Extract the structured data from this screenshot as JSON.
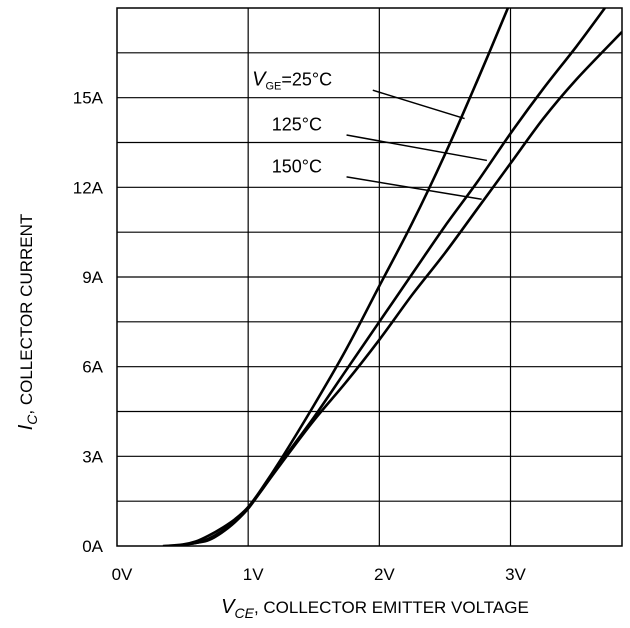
{
  "chart_data": {
    "type": "line",
    "xlabel": {
      "symbol": "V",
      "subscript": "CE",
      "text": ", COLLECTOR EMITTER VOLTAGE"
    },
    "ylabel": {
      "symbol": "I",
      "subscript": "C",
      "text": ", COLLECTOR CURRENT"
    },
    "xlim": [
      0,
      3.85
    ],
    "ylim": [
      0,
      18
    ],
    "x_ticks": [
      {
        "value": 0,
        "label": "0V"
      },
      {
        "value": 1,
        "label": "1V"
      },
      {
        "value": 2,
        "label": "2V"
      },
      {
        "value": 3,
        "label": "3V"
      }
    ],
    "y_ticks": [
      {
        "value": 0,
        "label": "0A"
      },
      {
        "value": 3,
        "label": "3A"
      },
      {
        "value": 6,
        "label": "6A"
      },
      {
        "value": 9,
        "label": "9A"
      },
      {
        "value": 12,
        "label": "12A"
      },
      {
        "value": 15,
        "label": "15A"
      }
    ],
    "grid": true,
    "series": [
      {
        "name": "25°C",
        "x": [
          0.35,
          0.5,
          0.6,
          0.7,
          0.8,
          0.9,
          1.0,
          1.1,
          1.25,
          1.5,
          1.75,
          2.0,
          2.25,
          2.5,
          2.75,
          2.98
        ],
        "y": [
          0,
          0.05,
          0.15,
          0.35,
          0.6,
          0.9,
          1.3,
          1.9,
          2.9,
          4.7,
          6.6,
          8.7,
          10.8,
          13.1,
          15.6,
          18.0
        ]
      },
      {
        "name": "125°C",
        "x": [
          0.4,
          0.6,
          0.7,
          0.8,
          0.9,
          1.0,
          1.1,
          1.25,
          1.5,
          1.75,
          2.0,
          2.25,
          2.5,
          2.75,
          3.0,
          3.25,
          3.5,
          3.72
        ],
        "y": [
          0,
          0.1,
          0.25,
          0.5,
          0.85,
          1.3,
          1.85,
          2.8,
          4.3,
          5.9,
          7.5,
          9.1,
          10.7,
          12.2,
          13.8,
          15.3,
          16.7,
          18.0
        ]
      },
      {
        "name": "150°C",
        "x": [
          0.45,
          0.6,
          0.7,
          0.8,
          0.9,
          1.0,
          1.1,
          1.25,
          1.5,
          1.75,
          2.0,
          2.25,
          2.5,
          2.75,
          3.0,
          3.25,
          3.5,
          3.85
        ],
        "y": [
          0,
          0.1,
          0.2,
          0.45,
          0.8,
          1.25,
          1.85,
          2.75,
          4.2,
          5.5,
          6.9,
          8.4,
          9.8,
          11.3,
          12.8,
          14.3,
          15.6,
          17.2
        ]
      }
    ],
    "annotations": [
      {
        "symbol": "V",
        "subscript": "GE",
        "text": "=25°C",
        "series": "25°C",
        "label_at": [
          1.03,
          15.4
        ],
        "line_start": [
          1.95,
          15.25
        ],
        "line_end": [
          2.65,
          14.3
        ]
      },
      {
        "text": "125°C",
        "series": "125°C",
        "label_at": [
          1.18,
          13.9
        ],
        "line_start": [
          1.75,
          13.75
        ],
        "line_end": [
          2.82,
          12.9
        ]
      },
      {
        "text": "150°C",
        "series": "150°C",
        "label_at": [
          1.18,
          12.5
        ],
        "line_start": [
          1.75,
          12.35
        ],
        "line_end": [
          2.78,
          11.6
        ]
      }
    ]
  }
}
